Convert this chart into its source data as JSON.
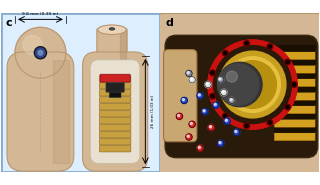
{
  "fig_width": 3.2,
  "fig_height": 1.85,
  "dpi": 100,
  "background_color": "#ffffff",
  "panel_c": {
    "label": "c",
    "bg_color": "#ddeeff",
    "border_color": "#88aacc",
    "capsule_color": "#d4b896",
    "capsule_dark": "#b8966e",
    "capsule_light": "#e8d4b8",
    "dim_text": "9.8 mm (0.39 in)",
    "dim_text2": "26 mm (1.03 in)",
    "inner_colors": {
      "coil": "#c8a040",
      "coil_edge": "#886622",
      "red_disk": "#cc2222",
      "red_disk_edge": "#881111",
      "dark": "#222222",
      "gray": "#888888",
      "interior": "#e8e0d0"
    }
  },
  "panel_d": {
    "label": "d",
    "bg_color": "#ffffff",
    "capsule_color": "#d4b896",
    "capsule_dark": "#b8966e",
    "interior_dark": "#2a1a0a",
    "coil_gold": "#d4a020",
    "coil_dark": "#1a1000",
    "red_disk": "#cc1111",
    "gold_ring": "#c8a020",
    "gold_light": "#e8c040",
    "sphere_dark": "#333333",
    "molecule_colors": {
      "red": "#dd2222",
      "blue": "#2244cc",
      "white": "#dddddd",
      "gray": "#888899"
    },
    "molecule_positions": [
      [
        1.8,
        2.2,
        "red"
      ],
      [
        2.5,
        1.5,
        "red"
      ],
      [
        1.2,
        3.5,
        "red"
      ],
      [
        2.0,
        3.0,
        "red"
      ],
      [
        3.2,
        2.8,
        "red"
      ],
      [
        3.8,
        1.8,
        "blue"
      ],
      [
        2.8,
        3.8,
        "blue"
      ],
      [
        4.2,
        3.2,
        "blue"
      ],
      [
        1.5,
        4.5,
        "blue"
      ],
      [
        2.5,
        4.8,
        "blue"
      ],
      [
        3.5,
        4.2,
        "blue"
      ],
      [
        4.8,
        2.5,
        "blue"
      ],
      [
        3.0,
        5.5,
        "white"
      ],
      [
        4.0,
        5.0,
        "white"
      ],
      [
        2.0,
        5.8,
        "white"
      ],
      [
        4.5,
        4.5,
        "gray"
      ],
      [
        1.8,
        6.2,
        "gray"
      ],
      [
        3.8,
        5.8,
        "gray"
      ]
    ]
  }
}
